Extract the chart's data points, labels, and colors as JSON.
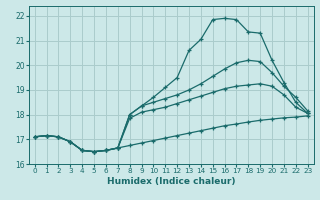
{
  "xlabel": "Humidex (Indice chaleur)",
  "bg_color": "#cce8e8",
  "grid_color": "#aacccc",
  "line_color": "#1a6b6b",
  "xlim": [
    -0.5,
    23.5
  ],
  "ylim": [
    16,
    22.4
  ],
  "xticks": [
    0,
    1,
    2,
    3,
    4,
    5,
    6,
    7,
    8,
    9,
    10,
    11,
    12,
    13,
    14,
    15,
    16,
    17,
    18,
    19,
    20,
    21,
    22,
    23
  ],
  "yticks": [
    16,
    17,
    18,
    19,
    20,
    21,
    22
  ],
  "lines": [
    {
      "x": [
        0,
        1,
        2,
        3,
        4,
        5,
        6,
        7,
        8,
        9,
        10,
        11,
        12,
        13,
        14,
        15,
        16,
        17,
        18,
        19,
        20,
        21,
        22,
        23
      ],
      "y": [
        17.1,
        17.15,
        17.1,
        16.9,
        16.55,
        16.5,
        16.55,
        16.65,
        16.75,
        16.85,
        16.95,
        17.05,
        17.15,
        17.25,
        17.35,
        17.45,
        17.55,
        17.62,
        17.7,
        17.77,
        17.82,
        17.87,
        17.9,
        17.95
      ]
    },
    {
      "x": [
        0,
        1,
        2,
        3,
        4,
        5,
        6,
        7,
        8,
        9,
        10,
        11,
        12,
        13,
        14,
        15,
        16,
        17,
        18,
        19,
        20,
        21,
        22,
        23
      ],
      "y": [
        17.1,
        17.15,
        17.1,
        16.9,
        16.55,
        16.5,
        16.55,
        16.65,
        17.85,
        18.1,
        18.2,
        18.3,
        18.45,
        18.6,
        18.75,
        18.9,
        19.05,
        19.15,
        19.2,
        19.25,
        19.15,
        18.8,
        18.3,
        18.05
      ]
    },
    {
      "x": [
        0,
        1,
        2,
        3,
        4,
        5,
        6,
        7,
        8,
        9,
        10,
        11,
        12,
        13,
        14,
        15,
        16,
        17,
        18,
        19,
        20,
        21,
        22,
        23
      ],
      "y": [
        17.1,
        17.15,
        17.1,
        16.9,
        16.55,
        16.5,
        16.55,
        16.65,
        18.0,
        18.35,
        18.5,
        18.65,
        18.8,
        19.0,
        19.25,
        19.55,
        19.85,
        20.1,
        20.2,
        20.15,
        19.7,
        19.15,
        18.7,
        18.15
      ]
    },
    {
      "x": [
        0,
        1,
        2,
        3,
        4,
        5,
        6,
        7,
        8,
        9,
        10,
        11,
        12,
        13,
        14,
        15,
        16,
        17,
        18,
        19,
        20,
        21,
        22,
        23
      ],
      "y": [
        17.1,
        17.15,
        17.1,
        16.9,
        16.55,
        16.5,
        16.55,
        16.65,
        18.0,
        18.35,
        18.7,
        19.1,
        19.5,
        20.6,
        21.05,
        21.85,
        21.9,
        21.85,
        21.35,
        21.3,
        20.2,
        19.3,
        18.5,
        18.05
      ]
    }
  ]
}
